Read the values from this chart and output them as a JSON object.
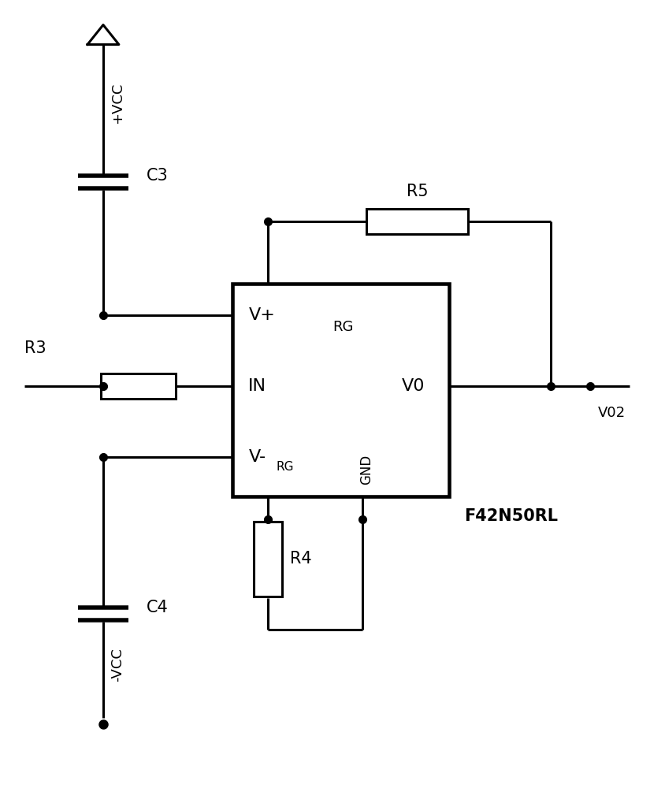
{
  "bg_color": "#ffffff",
  "line_color": "#000000",
  "line_width": 2.2,
  "dot_size": 7,
  "fig_width": 8.44,
  "fig_height": 10.0,
  "labels": {
    "vplus": "V+",
    "in": "IN",
    "vminus": "V-",
    "rg_top": "RG",
    "rg_bot": "RG",
    "v0": "V0",
    "gnd": "GND",
    "vcc_plus": "+VCC",
    "vcc_minus": "-VCC",
    "c3": "C3",
    "c4": "C4",
    "r3": "R3",
    "r4": "R4",
    "r5": "R5",
    "v02": "V02",
    "ic_name": "F42N50RL"
  }
}
